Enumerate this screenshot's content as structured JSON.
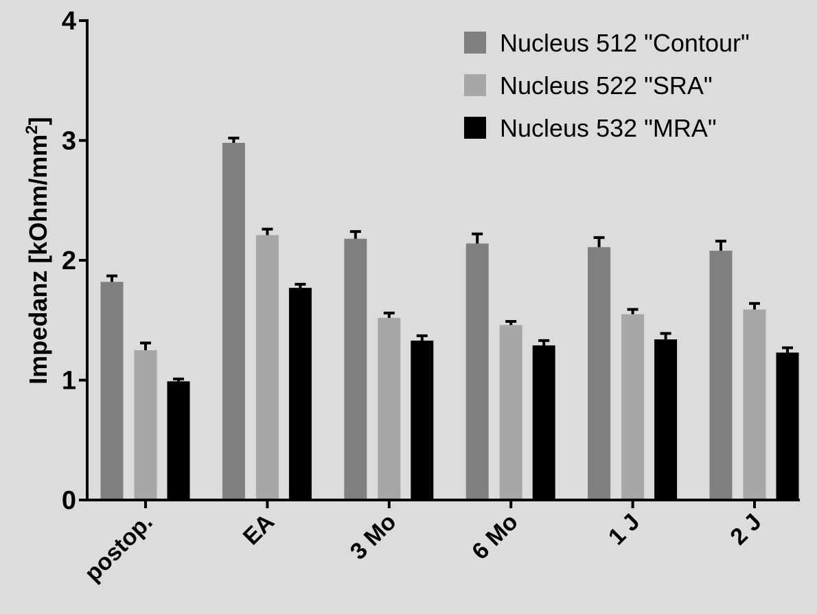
{
  "chart_data": {
    "type": "bar",
    "categories": [
      "postop.",
      "EA",
      "3 Mo",
      "6 Mo",
      "1 J",
      "2 J"
    ],
    "series": [
      {
        "name": "Nucleus 512 \"Contour\"",
        "color": "#808080",
        "values": [
          1.82,
          2.98,
          2.18,
          2.14,
          2.11,
          2.08
        ],
        "errors": [
          0.05,
          0.04,
          0.06,
          0.08,
          0.08,
          0.08
        ]
      },
      {
        "name": "Nucleus 522 \"SRA\"",
        "color": "#a7a7a9",
        "values": [
          1.25,
          2.21,
          1.52,
          1.46,
          1.55,
          1.59
        ],
        "errors": [
          0.06,
          0.05,
          0.04,
          0.03,
          0.04,
          0.05
        ]
      },
      {
        "name": "Nucleus 532 \"MRA\"",
        "color": "#000000",
        "values": [
          0.99,
          1.77,
          1.33,
          1.29,
          1.34,
          1.23
        ],
        "errors": [
          0.02,
          0.03,
          0.04,
          0.04,
          0.05,
          0.04
        ]
      }
    ],
    "ylabel_main": "Impedanz  [kOhm/mm",
    "ylabel_sup": "2",
    "ylabel_close": "]",
    "yticks": [
      "0",
      "1",
      "2",
      "3",
      "4"
    ],
    "ylim": [
      0,
      4
    ],
    "legend_position": "top-right",
    "grid": false
  }
}
